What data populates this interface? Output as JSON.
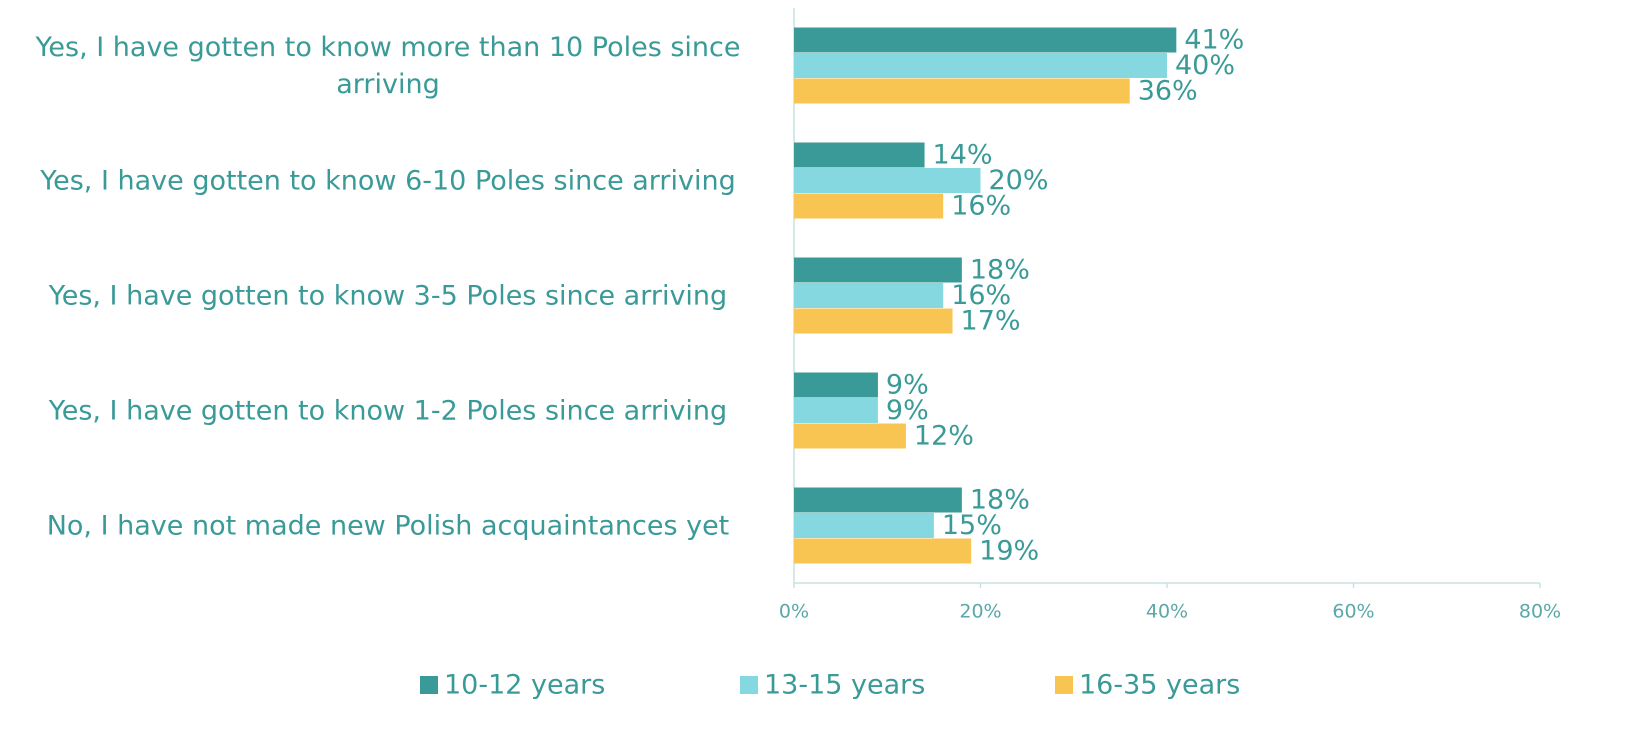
{
  "chart_data": {
    "type": "barh",
    "categories": [
      "Yes, I have gotten to know more than 10 Poles since arriving",
      "Yes, I have gotten to know 6-10 Poles since arriving",
      "Yes, I have gotten to know 3-5 Poles since arriving",
      "Yes, I have gotten to know 1-2 Poles since arriving",
      "No, I have not made new Polish acquaintances yet"
    ],
    "series": [
      {
        "name": "10-12 years",
        "color": "#3a9a98",
        "values": [
          41,
          14,
          18,
          9,
          18
        ],
        "value_labels": [
          "41%",
          "14%",
          "18%",
          "9%",
          "18%"
        ]
      },
      {
        "name": "13-15 years",
        "color": "#86d8e0",
        "values": [
          40,
          20,
          16,
          9,
          15
        ],
        "value_labels": [
          "40%",
          "20%",
          "16%",
          "9%",
          "15%"
        ]
      },
      {
        "name": "16-35 years",
        "color": "#f8c552",
        "values": [
          36,
          16,
          17,
          12,
          19
        ],
        "value_labels": [
          "36%",
          "16%",
          "17%",
          "12%",
          "19%"
        ]
      }
    ],
    "xlim": [
      0,
      80
    ],
    "xticks": [
      {
        "value": 0,
        "label": "0%"
      },
      {
        "value": 20,
        "label": "20%"
      },
      {
        "value": 40,
        "label": "40%"
      },
      {
        "value": 60,
        "label": "60%"
      },
      {
        "value": 80,
        "label": "80%"
      }
    ],
    "legend": "bottom"
  }
}
